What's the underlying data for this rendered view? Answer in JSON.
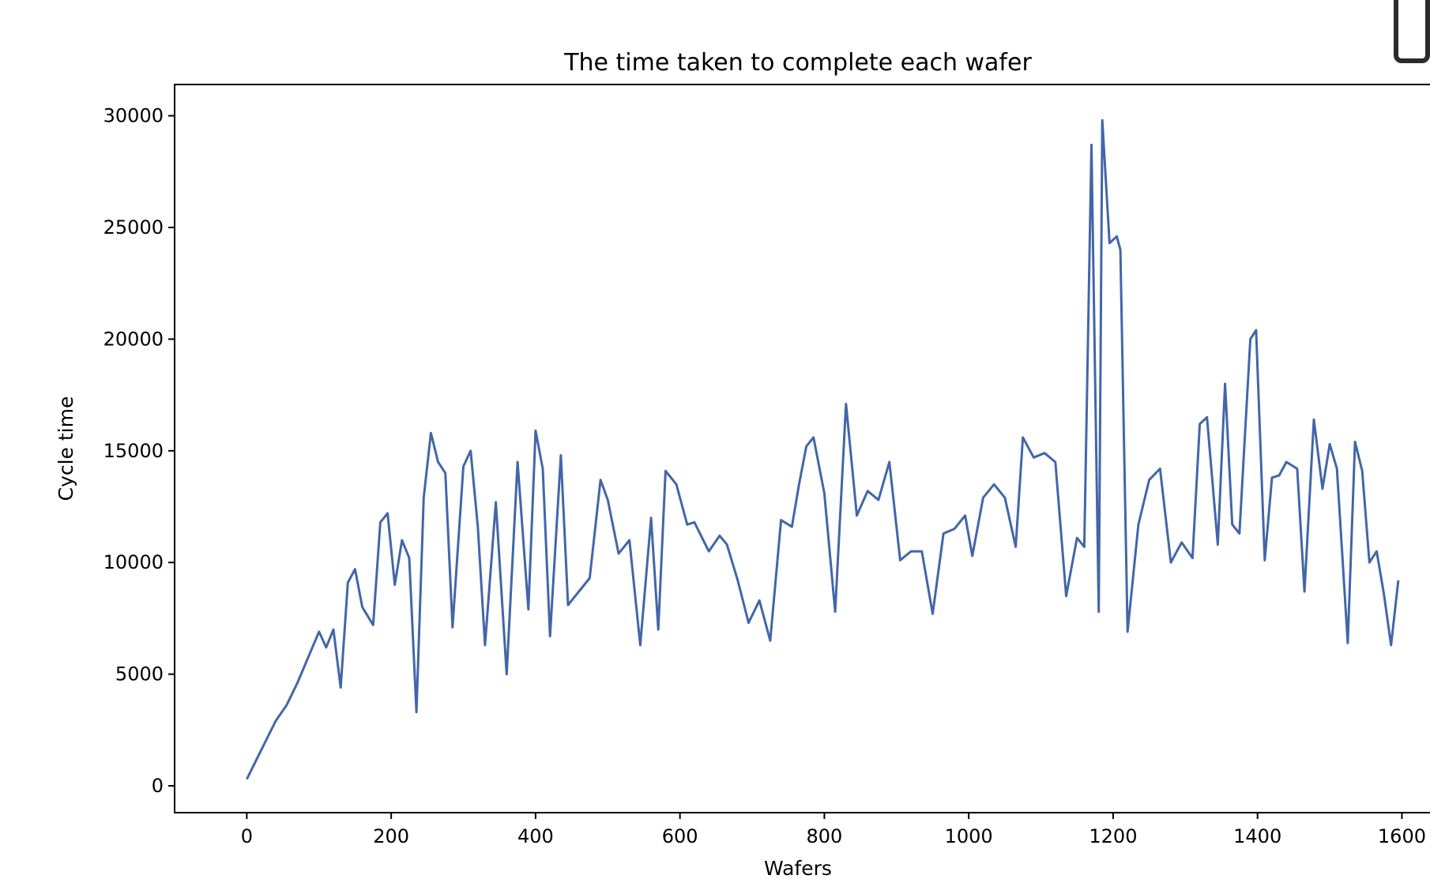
{
  "chart_data": {
    "type": "line",
    "title": "The time taken to complete each wafer",
    "xlabel": "Wafers",
    "ylabel": "Cycle time",
    "xlim": [
      -100,
      1640
    ],
    "ylim": [
      -1200,
      31400
    ],
    "xticks": [
      0,
      200,
      400,
      600,
      800,
      1000,
      1200,
      1400,
      1600
    ],
    "yticks": [
      0,
      5000,
      10000,
      15000,
      20000,
      25000,
      30000
    ],
    "grid": false,
    "legend": "none",
    "series": [
      {
        "color": "#4266a8",
        "x": [
          0,
          40,
          55,
          70,
          100,
          110,
          120,
          130,
          140,
          150,
          160,
          175,
          185,
          195,
          205,
          215,
          225,
          235,
          245,
          255,
          265,
          275,
          285,
          300,
          310,
          320,
          330,
          345,
          360,
          375,
          390,
          400,
          410,
          420,
          435,
          445,
          460,
          475,
          490,
          500,
          515,
          530,
          545,
          560,
          570,
          580,
          595,
          610,
          620,
          640,
          655,
          665,
          680,
          695,
          710,
          725,
          740,
          755,
          765,
          775,
          785,
          800,
          815,
          830,
          845,
          860,
          875,
          890,
          905,
          920,
          935,
          950,
          965,
          980,
          995,
          1005,
          1020,
          1035,
          1050,
          1065,
          1075,
          1090,
          1105,
          1120,
          1135,
          1150,
          1160,
          1170,
          1180,
          1185,
          1195,
          1205,
          1210,
          1220,
          1235,
          1250,
          1265,
          1280,
          1295,
          1310,
          1320,
          1330,
          1345,
          1355,
          1365,
          1375,
          1390,
          1398,
          1410,
          1420,
          1430,
          1440,
          1455,
          1465,
          1478,
          1490,
          1500,
          1510,
          1525,
          1535,
          1545,
          1555,
          1565,
          1575,
          1585,
          1595
        ],
        "values": [
          300,
          2900,
          3600,
          4600,
          6900,
          6200,
          7000,
          4400,
          9100,
          9700,
          8000,
          7200,
          11800,
          12200,
          9000,
          11000,
          10200,
          3300,
          12900,
          15800,
          14500,
          14000,
          7100,
          14300,
          15000,
          11600,
          6300,
          12700,
          5000,
          14500,
          7900,
          15900,
          14200,
          6700,
          14800,
          8100,
          8700,
          9300,
          13700,
          12800,
          10400,
          11000,
          6300,
          12000,
          7000,
          14100,
          13500,
          11700,
          11800,
          10500,
          11200,
          10800,
          9200,
          7300,
          8300,
          6500,
          11900,
          11600,
          13500,
          15200,
          15600,
          13100,
          7800,
          17100,
          12100,
          13200,
          12800,
          14500,
          10100,
          10500,
          10500,
          7700,
          11300,
          11500,
          12100,
          10300,
          12900,
          13500,
          12900,
          10700,
          15600,
          14700,
          14900,
          14500,
          8500,
          11100,
          10700,
          28700,
          7800,
          29800,
          24300,
          24600,
          24000,
          6900,
          11700,
          13700,
          14200,
          10000,
          10900,
          10200,
          16200,
          16500,
          10800,
          18000,
          11700,
          11300,
          20000,
          20400,
          10100,
          13800,
          13900,
          14500,
          14200,
          8700,
          16400,
          13300,
          15300,
          14200,
          6400,
          15400,
          14100,
          10000,
          10500,
          8600,
          6300,
          9200
        ]
      }
    ]
  }
}
